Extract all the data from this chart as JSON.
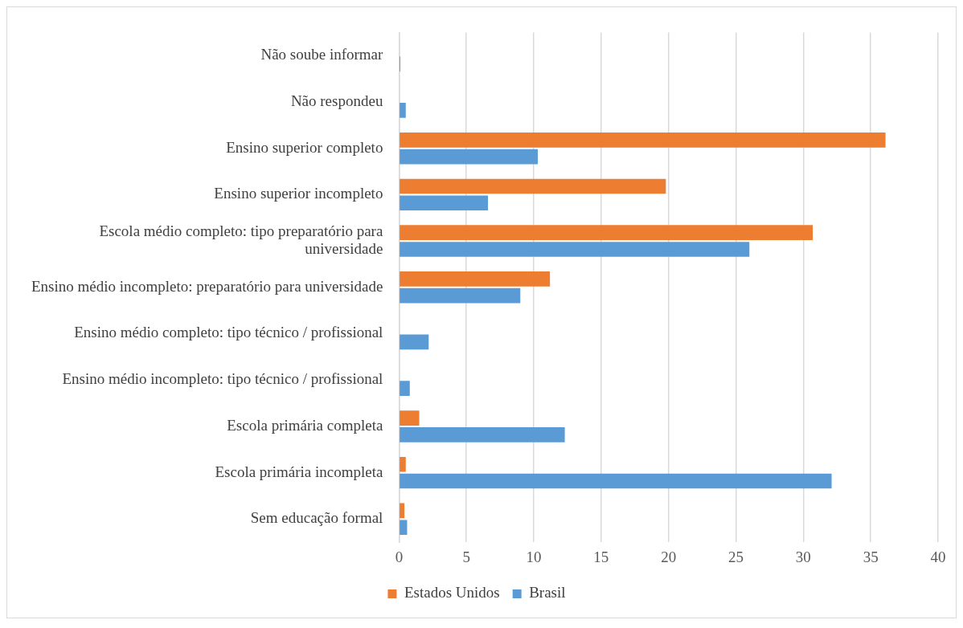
{
  "chart_data": {
    "type": "bar",
    "orientation": "horizontal",
    "categories": [
      "Não soube informar",
      "Não respondeu",
      "Ensino superior completo",
      "Ensino superior incompleto",
      "Escola médio completo: tipo preparatório para universidade",
      "Ensino médio incompleto: preparatório para universidade",
      "Ensino médio completo: tipo técnico / profissional",
      "Ensino médio incompleto: tipo técnico / profissional",
      "Escola primária completa",
      "Escola primária incompleta",
      "Sem educação formal"
    ],
    "series": [
      {
        "name": "Estados Unidos",
        "color": "#ed7d31",
        "values": [
          null,
          null,
          36.1,
          19.8,
          30.7,
          11.2,
          null,
          null,
          1.5,
          0.5,
          0.4
        ]
      },
      {
        "name": "Brasil",
        "color": "#5b9bd5",
        "values": [
          0.1,
          0.5,
          10.3,
          6.6,
          26.0,
          9.0,
          2.2,
          0.8,
          12.3,
          32.1,
          0.6
        ]
      }
    ],
    "xlim": [
      0,
      40
    ],
    "xticks": [
      0,
      5,
      10,
      15,
      20,
      25,
      30,
      35,
      40
    ],
    "grid": "x",
    "legend": "bottom"
  }
}
